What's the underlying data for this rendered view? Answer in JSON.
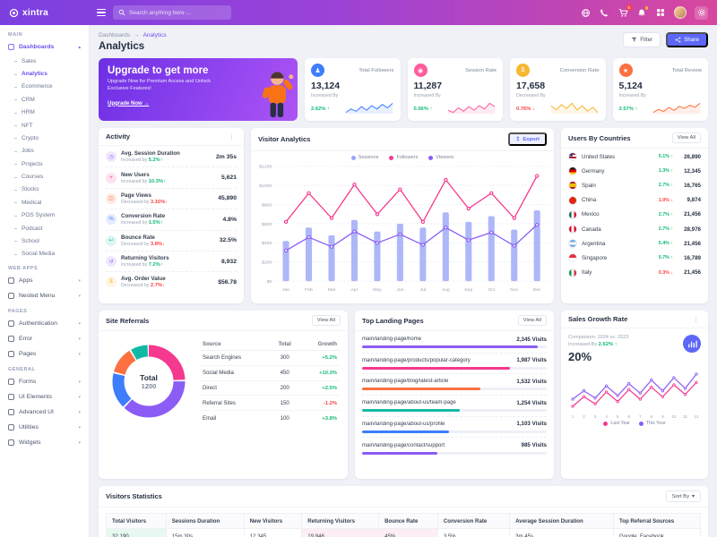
{
  "brand": {
    "name": "xintra"
  },
  "header": {
    "search_placeholder": "Search anything here ...",
    "cart_badge": "5"
  },
  "icons": {
    "menu_dots": "⋮",
    "chevron_down": "▾",
    "arrow_up": "↑",
    "arrow_down": "↓",
    "export_arrow": "↥",
    "breadcrumb_sep": "→"
  },
  "sidebar": {
    "items": [
      {
        "label": "MAIN",
        "type": "section"
      },
      {
        "label": "Dashboards",
        "type": "parent",
        "chevron": "▴",
        "state": "active"
      },
      {
        "label": "Sales",
        "type": "child"
      },
      {
        "label": "Analytics",
        "type": "child",
        "state": "active"
      },
      {
        "label": "Ecommerce",
        "type": "child"
      },
      {
        "label": "CRM",
        "type": "child"
      },
      {
        "label": "HRM",
        "type": "child"
      },
      {
        "label": "NFT",
        "type": "child"
      },
      {
        "label": "Crypto",
        "type": "child"
      },
      {
        "label": "Jobs",
        "type": "child"
      },
      {
        "label": "Projects",
        "type": "child"
      },
      {
        "label": "Courses",
        "type": "child"
      },
      {
        "label": "Stocks",
        "type": "child"
      },
      {
        "label": "Medical",
        "type": "child"
      },
      {
        "label": "POS System",
        "type": "child"
      },
      {
        "label": "Podcast",
        "type": "child"
      },
      {
        "label": "School",
        "type": "child"
      },
      {
        "label": "Social Media",
        "type": "child"
      },
      {
        "label": "WEB APPS",
        "type": "section"
      },
      {
        "label": "Apps",
        "type": "parent",
        "chevron": "▾"
      },
      {
        "label": "Nested Menu",
        "type": "parent",
        "chevron": "▾"
      },
      {
        "label": "PAGES",
        "type": "section"
      },
      {
        "label": "Authentication",
        "type": "parent",
        "chevron": "▾"
      },
      {
        "label": "Error",
        "type": "parent",
        "chevron": "▾"
      },
      {
        "label": "Pages",
        "type": "parent",
        "chevron": "▾"
      },
      {
        "label": "GENERAL",
        "type": "section"
      },
      {
        "label": "Forms",
        "type": "parent",
        "chevron": "▾"
      },
      {
        "label": "UI Elements",
        "type": "parent",
        "chevron": "▾"
      },
      {
        "label": "Advanced UI",
        "type": "parent",
        "chevron": "▾"
      },
      {
        "label": "Utilities",
        "type": "parent",
        "chevron": "▾"
      },
      {
        "label": "Widgets",
        "type": "parent",
        "chevron": "▾"
      }
    ]
  },
  "page": {
    "breadcrumb_parent": "Dashboards",
    "breadcrumb_current": "Analytics",
    "title": "Analytics",
    "filter_label": "Filter",
    "share_label": "Share"
  },
  "upgrade": {
    "title": "Upgrade to get more",
    "subtitle": "Upgrade Now for Premium Access and Unlock Exclusive Features!",
    "cta": "Upgrade Now →"
  },
  "stat_cards": [
    {
      "label": "Total Followers",
      "value": "13,124",
      "change_label": "Increased By",
      "change": "2.62%",
      "dir": "up",
      "color": "#3e7dfb",
      "icon": "♟"
    },
    {
      "label": "Session Rate",
      "value": "11,287",
      "change_label": "Increased By",
      "change": "0.56%",
      "dir": "up",
      "color": "#fe5c9c",
      "icon": "◉"
    },
    {
      "label": "Conversion Rate",
      "value": "17,658",
      "change_label": "Decreased By",
      "change": "0.76%",
      "dir": "down",
      "color": "#f7b731",
      "icon": "$"
    },
    {
      "label": "Total Review",
      "value": "5,124",
      "change_label": "Increased By",
      "change": "2.57%",
      "dir": "up",
      "color": "#fd7041",
      "icon": "★"
    }
  ],
  "activity": {
    "title": "Activity",
    "items": [
      {
        "title": "Avg. Session Duration",
        "change_label": "Increased by",
        "change": "5.2%",
        "dir": "up",
        "value": "2m 35s",
        "icon": "◷",
        "color": "#8b5cf6"
      },
      {
        "title": "New Users",
        "change_label": "Increased by",
        "change": "10.3%",
        "dir": "up",
        "value": "5,621",
        "icon": "+",
        "color": "#f5398f"
      },
      {
        "title": "Page Views",
        "change_label": "Decreased by",
        "change": "3.15%",
        "dir": "down",
        "value": "45,890",
        "icon": "◫",
        "color": "#fd7041"
      },
      {
        "title": "Conversion Rate",
        "change_label": "Increased by",
        "change": "1.5%",
        "dir": "up",
        "value": "4.8%",
        "icon": "%",
        "color": "#3e7dfb"
      },
      {
        "title": "Bounce Rate",
        "change_label": "Decreased by",
        "change": "3.8%",
        "dir": "down",
        "value": "32.5%",
        "icon": "↩",
        "color": "#12b8a6"
      },
      {
        "title": "Returning Visitors",
        "change_label": "Increased by",
        "change": "7.2%",
        "dir": "up",
        "value": "8,932",
        "icon": "↺",
        "color": "#8b5cf6"
      },
      {
        "title": "Avg. Order Value",
        "change_label": "Decreased by",
        "change": "2.7%",
        "dir": "down",
        "value": "$56.78",
        "icon": "$",
        "color": "#f7b731"
      }
    ]
  },
  "visitor_analytics": {
    "title": "Visitor Analytics",
    "export_label": "Export"
  },
  "countries": {
    "title": "Users By Countries",
    "view_all": "View All",
    "rows": [
      {
        "name": "United States",
        "change": "5.1%",
        "dir": "up",
        "value": "26,890",
        "flag": "linear-gradient(#3c3b6e,#3c3b6e) left top/55% 45% no-repeat, repeating-linear-gradient(180deg,#b22234 0 2px,#fff 2px 4px)"
      },
      {
        "name": "Germany",
        "change": "1.3%",
        "dir": "up",
        "value": "12,345",
        "flag": "linear-gradient(180deg,#1a1a1a 33%,#dd0000 33% 66%,#ffce00 66%)"
      },
      {
        "name": "Spain",
        "change": "2.7%",
        "dir": "up",
        "value": "16,765",
        "flag": "linear-gradient(180deg,#aa151b 25%,#f1bf00 25% 75%,#aa151b 75%)"
      },
      {
        "name": "China",
        "change": "1.0%",
        "dir": "down",
        "value": "9,874",
        "flag": "linear-gradient(135deg,#ffde00 0 16%,#de2910 16%)"
      },
      {
        "name": "Mexico",
        "change": "2.7%",
        "dir": "up",
        "value": "21,456",
        "flag": "linear-gradient(90deg,#006847 33%,#fff 33% 66%,#ce1126 66%)"
      },
      {
        "name": "Canada",
        "change": "2.7%",
        "dir": "up",
        "value": "28,976",
        "flag": "linear-gradient(90deg,#d80621 30%,#fff 30% 70%,#d80621 70%)"
      },
      {
        "name": "Argentina",
        "change": "5.4%",
        "dir": "up",
        "value": "21,456",
        "flag": "linear-gradient(180deg,#74acdf 33%,#fff 33% 66%,#74acdf 66%)"
      },
      {
        "name": "Singapore",
        "change": "0.7%",
        "dir": "up",
        "value": "16,789",
        "flag": "linear-gradient(180deg,#ed2939 50%,#fff 50%)"
      },
      {
        "name": "Italy",
        "change": "0.3%",
        "dir": "down",
        "value": "21,456",
        "flag": "linear-gradient(90deg,#009246 33%,#fff 33% 66%,#ce2b37 66%)"
      }
    ]
  },
  "site_referrals": {
    "title": "Site Referrals",
    "view_all": "View All",
    "center_label": "Total",
    "center_value": "1200",
    "columns": [
      "Source",
      "Total",
      "Growth"
    ],
    "rows": [
      {
        "source": "Search Engines",
        "total": "300",
        "growth": "+5.2%",
        "dir": "up"
      },
      {
        "source": "Social Media",
        "total": "450",
        "growth": "+10.3%",
        "dir": "up"
      },
      {
        "source": "Direct",
        "total": "200",
        "growth": "+2.5%",
        "dir": "up"
      },
      {
        "source": "Referral Sites",
        "total": "150",
        "growth": "-1.2%",
        "dir": "down"
      },
      {
        "source": "Email",
        "total": "100",
        "growth": "+3.8%",
        "dir": "up"
      }
    ]
  },
  "landing_pages": {
    "title": "Top Landing Pages",
    "view_all": "View All",
    "rows": [
      {
        "page": "main/landing-page/home",
        "visits": "2,345 Visits",
        "width": "95%",
        "color": "#8b5cf6"
      },
      {
        "page": "main/landing-page/products/popular-category",
        "visits": "1,987 Visits",
        "width": "80%",
        "color": "#f5398f"
      },
      {
        "page": "main/landing-page/blog/latest-article",
        "visits": "1,532 Visits",
        "width": "64%",
        "color": "#fd7041"
      },
      {
        "page": "main/landing-page/about-us/team-page",
        "visits": "1,254 Visits",
        "width": "53%",
        "color": "#12b8a6"
      },
      {
        "page": "main/landing-page/about-us/profile",
        "visits": "1,103 Visits",
        "width": "47%",
        "color": "#3e7dfb"
      },
      {
        "page": "main/landing-page/contact/support",
        "visits": "985 Visits",
        "width": "41%",
        "color": "#8b5cf6"
      }
    ]
  },
  "sales_growth": {
    "title": "Sales Growth Rate",
    "comparison_label": "Comparison: 2024 vs. 2023",
    "change_label": "Increased By",
    "change": "2.62%",
    "dir": "up",
    "rate": "20%",
    "legend": [
      {
        "label": "Last Year",
        "color": "#f5398f"
      },
      {
        "label": "This Year",
        "color": "#8b5cf6"
      }
    ]
  },
  "visitors_statistics": {
    "title": "Visitors Statistics",
    "sort_label": "Sort By",
    "columns": [
      "Total Visitors",
      "Sessions Duration",
      "New Visitors",
      "Returning Visitors",
      "Bounce Rate",
      "Conversion Rate",
      "Average Session Duration",
      "Top Referral Sources"
    ],
    "row": [
      {
        "value": "32,190",
        "bg": "#e6f8ef"
      },
      {
        "value": "15m 30s",
        "bg": ""
      },
      {
        "value": "12,345",
        "bg": ""
      },
      {
        "value": "19,846",
        "bg": "#fdeef5"
      },
      {
        "value": "45%",
        "bg": "#fdeef5"
      },
      {
        "value": "3.5%",
        "bg": ""
      },
      {
        "value": "3m 45s",
        "bg": ""
      },
      {
        "value": "Google, Facebook",
        "bg": ""
      }
    ]
  },
  "chart_data": [
    {
      "id": "visitor_analytics",
      "type": "bar",
      "title": "Visitor Analytics",
      "x": [
        "Jan",
        "Feb",
        "Mar",
        "Apr",
        "May",
        "Jun",
        "Jul",
        "Aug",
        "Sep",
        "Oct",
        "Nov",
        "Dec"
      ],
      "ylim": [
        0,
        1200
      ],
      "y_ticks": [
        "$1200",
        "$1000",
        "$800",
        "$600",
        "$400",
        "$200",
        "$0"
      ],
      "grid": true,
      "legend_position": "top",
      "series": [
        {
          "name": "Sessions",
          "type": "bar",
          "color": "#9aa5f8",
          "values": [
            420,
            560,
            480,
            640,
            520,
            600,
            560,
            720,
            620,
            680,
            540,
            740
          ]
        },
        {
          "name": "Followers",
          "type": "line",
          "color": "#f5398f",
          "values": [
            620,
            920,
            660,
            1010,
            700,
            960,
            620,
            1060,
            760,
            920,
            660,
            1100
          ]
        },
        {
          "name": "Viewers",
          "type": "line",
          "color": "#8b5cf6",
          "values": [
            320,
            460,
            360,
            520,
            400,
            490,
            380,
            560,
            430,
            510,
            370,
            590
          ]
        }
      ]
    },
    {
      "id": "site_referrals",
      "type": "pie",
      "labels": [
        "Search Engines",
        "Social Media",
        "Direct",
        "Referral Sites",
        "Email"
      ],
      "values": [
        300,
        450,
        200,
        150,
        100
      ],
      "colors": [
        "#f5398f",
        "#8b5cf6",
        "#3e7dfb",
        "#fd7041",
        "#12b8a6"
      ],
      "total_label": "Total",
      "total_value": 1200
    },
    {
      "id": "sales_growth",
      "type": "line",
      "x": [
        1,
        2,
        3,
        4,
        5,
        6,
        7,
        8,
        9,
        10,
        11,
        12
      ],
      "legend_position": "bottom",
      "series": [
        {
          "name": "Last Year",
          "color": "#f5398f",
          "values": [
            32,
            48,
            36,
            56,
            40,
            60,
            44,
            64,
            48,
            68,
            52,
            72
          ]
        },
        {
          "name": "This Year",
          "color": "#8b5cf6",
          "values": [
            44,
            58,
            46,
            66,
            50,
            70,
            54,
            76,
            58,
            80,
            62,
            86
          ]
        }
      ]
    },
    {
      "id": "stat_sparklines",
      "type": "area",
      "series": [
        {
          "name": "Total Followers",
          "color": "#3e7dfb",
          "values": [
            4,
            7,
            5,
            9,
            6,
            10,
            7,
            11,
            8,
            12
          ]
        },
        {
          "name": "Session Rate",
          "color": "#fe5c9c",
          "values": [
            6,
            4,
            8,
            5,
            9,
            6,
            10,
            7,
            12,
            9
          ]
        },
        {
          "name": "Conversion Rate",
          "color": "#f7b731",
          "values": [
            9,
            6,
            10,
            7,
            11,
            6,
            9,
            5,
            8,
            4
          ]
        },
        {
          "name": "Total Review",
          "color": "#fd7041",
          "values": [
            3,
            6,
            4,
            8,
            5,
            9,
            7,
            10,
            8,
            12
          ]
        }
      ]
    }
  ]
}
